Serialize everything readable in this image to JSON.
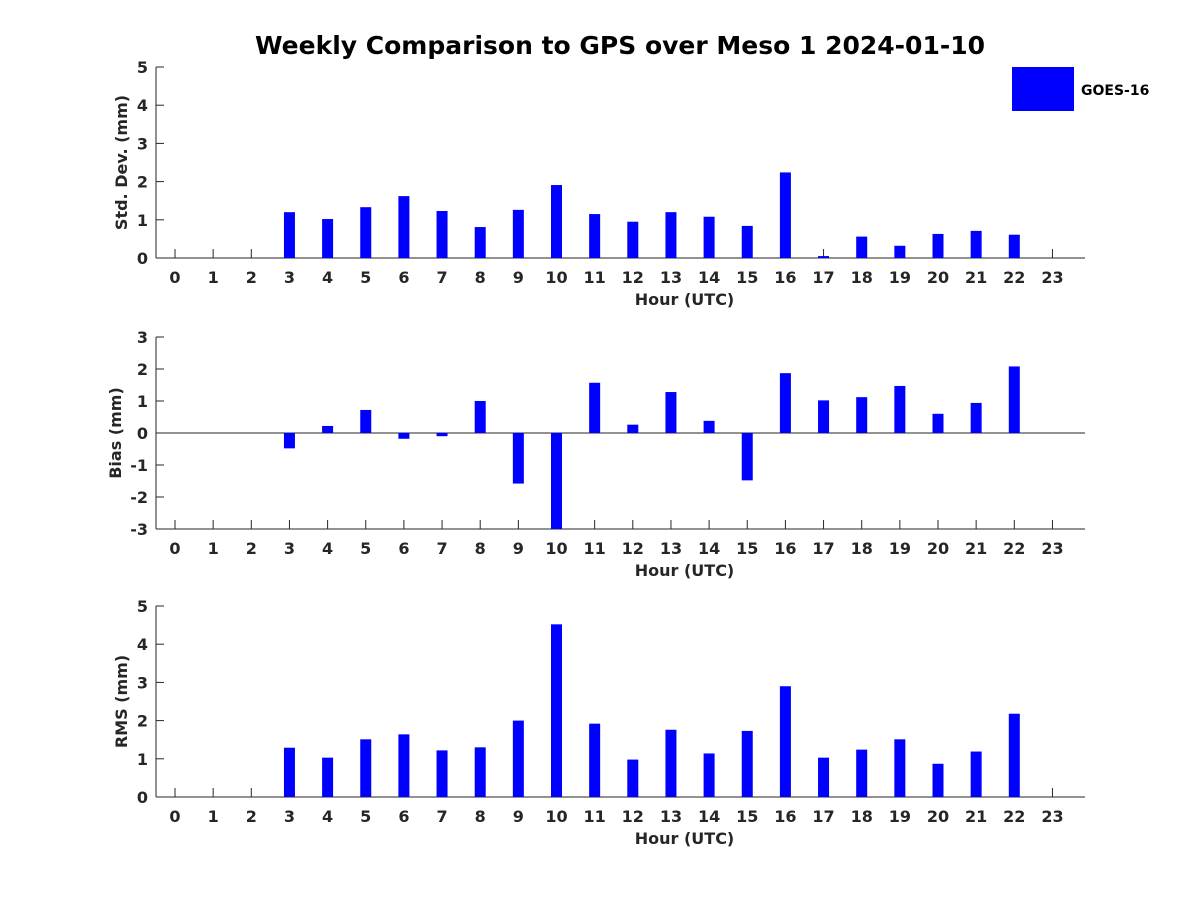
{
  "title": "Weekly Comparison to GPS over Meso 1 2024-01-10",
  "legend": {
    "label": "GOES-16",
    "color": "#0000ff",
    "placement": "top-right"
  },
  "bar_color": "#0000ff",
  "chart_data": [
    {
      "type": "bar",
      "xlabel": "Hour (UTC)",
      "ylabel": "Std. Dev. (mm)",
      "ylim": [
        0,
        5
      ],
      "yticks": [
        "0",
        "1",
        "2",
        "3",
        "4",
        "5"
      ],
      "categories": [
        "0",
        "1",
        "2",
        "3",
        "4",
        "5",
        "6",
        "7",
        "8",
        "9",
        "10",
        "11",
        "12",
        "13",
        "14",
        "15",
        "16",
        "17",
        "18",
        "19",
        "20",
        "21",
        "22",
        "23"
      ],
      "series": [
        {
          "name": "GOES-16",
          "values": [
            null,
            null,
            null,
            1.2,
            1.02,
            1.33,
            1.62,
            1.23,
            0.81,
            1.26,
            1.91,
            1.15,
            0.95,
            1.2,
            1.08,
            0.84,
            2.24,
            0.05,
            0.56,
            0.32,
            0.63,
            0.71,
            0.61,
            null
          ]
        }
      ]
    },
    {
      "type": "bar",
      "xlabel": "Hour (UTC)",
      "ylabel": "Bias (mm)",
      "ylim": [
        -3,
        3
      ],
      "yticks": [
        "-3",
        "-2",
        "-1",
        "0",
        "1",
        "2",
        "3"
      ],
      "categories": [
        "0",
        "1",
        "2",
        "3",
        "4",
        "5",
        "6",
        "7",
        "8",
        "9",
        "10",
        "11",
        "12",
        "13",
        "14",
        "15",
        "16",
        "17",
        "18",
        "19",
        "20",
        "21",
        "22",
        "23"
      ],
      "series": [
        {
          "name": "GOES-16",
          "values": [
            null,
            null,
            null,
            -0.48,
            0.22,
            0.72,
            -0.18,
            -0.1,
            1.0,
            -1.58,
            -3.0,
            1.57,
            0.26,
            1.28,
            0.38,
            -1.48,
            1.87,
            1.02,
            1.12,
            1.47,
            0.6,
            0.94,
            2.08,
            null
          ]
        }
      ]
    },
    {
      "type": "bar",
      "xlabel": "Hour (UTC)",
      "ylabel": "RMS (mm)",
      "ylim": [
        0,
        5
      ],
      "yticks": [
        "0",
        "1",
        "2",
        "3",
        "4",
        "5"
      ],
      "categories": [
        "0",
        "1",
        "2",
        "3",
        "4",
        "5",
        "6",
        "7",
        "8",
        "9",
        "10",
        "11",
        "12",
        "13",
        "14",
        "15",
        "16",
        "17",
        "18",
        "19",
        "20",
        "21",
        "22",
        "23"
      ],
      "series": [
        {
          "name": "GOES-16",
          "values": [
            null,
            null,
            null,
            1.29,
            1.03,
            1.51,
            1.64,
            1.22,
            1.3,
            2.0,
            4.52,
            1.92,
            0.98,
            1.76,
            1.14,
            1.73,
            2.9,
            1.03,
            1.24,
            1.51,
            0.87,
            1.19,
            2.18,
            null
          ]
        }
      ]
    }
  ]
}
